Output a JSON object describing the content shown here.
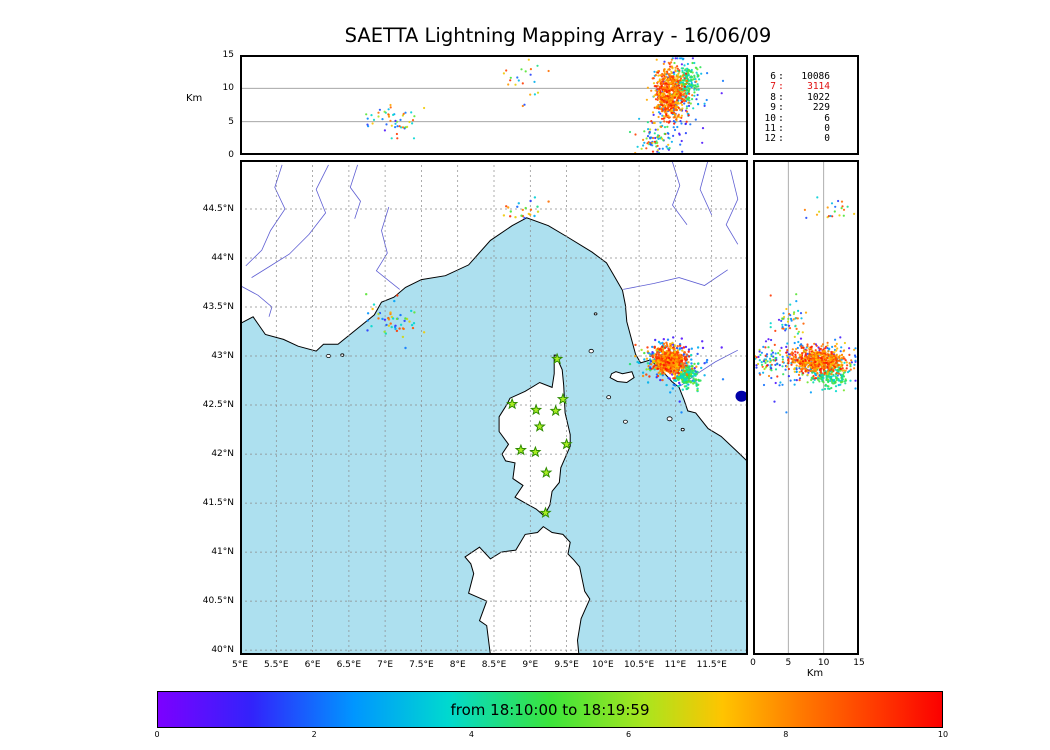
{
  "title": "SAETTA Lightning Mapping Array - 16/06/09",
  "axes": {
    "km_label": "Km",
    "right_km_label": "Km",
    "alt_ticks": [
      {
        "label": "0",
        "v": 0
      },
      {
        "label": "5",
        "v": 5
      },
      {
        "label": "10",
        "v": 10
      },
      {
        "label": "15",
        "v": 15
      }
    ],
    "lat_ticks": [
      {
        "label": "44.5°N",
        "v": 44.5
      },
      {
        "label": "44°N",
        "v": 44
      },
      {
        "label": "43.5°N",
        "v": 43.5
      },
      {
        "label": "43°N",
        "v": 43
      },
      {
        "label": "42.5°N",
        "v": 42.5
      },
      {
        "label": "42°N",
        "v": 42
      },
      {
        "label": "41.5°N",
        "v": 41.5
      },
      {
        "label": "41°N",
        "v": 41
      },
      {
        "label": "40.5°N",
        "v": 40.5
      },
      {
        "label": "40°N",
        "v": 40
      }
    ],
    "lon_ticks": [
      {
        "label": "5°E",
        "v": 5
      },
      {
        "label": "5.5°E",
        "v": 5.5
      },
      {
        "label": "6°E",
        "v": 6
      },
      {
        "label": "6.5°E",
        "v": 6.5
      },
      {
        "label": "7°E",
        "v": 7
      },
      {
        "label": "7.5°E",
        "v": 7.5
      },
      {
        "label": "8°E",
        "v": 8
      },
      {
        "label": "8.5°E",
        "v": 8.5
      },
      {
        "label": "9°E",
        "v": 9
      },
      {
        "label": "9.5°E",
        "v": 9.5
      },
      {
        "label": "10°E",
        "v": 10
      },
      {
        "label": "10.5°E",
        "v": 10.5
      },
      {
        "label": "11°E",
        "v": 11
      },
      {
        "label": "11.5°E",
        "v": 11.5
      }
    ],
    "right_km_ticks": [
      {
        "label": "0",
        "v": 0
      },
      {
        "label": "5",
        "v": 5
      },
      {
        "label": "10",
        "v": 10
      },
      {
        "label": "15",
        "v": 15
      }
    ],
    "alt_gridlines": [
      5,
      10
    ]
  },
  "stats_panel": {
    "highlight_color": "#e01010",
    "rows": [
      {
        "station": "6",
        "count": "10086",
        "highlight": false
      },
      {
        "station": "7",
        "count": "3114",
        "highlight": true
      },
      {
        "station": "8",
        "count": "1022",
        "highlight": false
      },
      {
        "station": "9",
        "count": "229",
        "highlight": false
      },
      {
        "station": "10",
        "count": "6",
        "highlight": false
      },
      {
        "station": "11",
        "count": "0",
        "highlight": false
      },
      {
        "station": "12",
        "count": "0",
        "highlight": false
      }
    ]
  },
  "colorbar": {
    "label": "from 18:10:00 to 18:19:59",
    "ticks": [
      {
        "label": "0",
        "v": 0
      },
      {
        "label": "2",
        "v": 2
      },
      {
        "label": "4",
        "v": 4
      },
      {
        "label": "6",
        "v": 6
      },
      {
        "label": "8",
        "v": 8
      },
      {
        "label": "10",
        "v": 10
      }
    ],
    "stops": [
      [
        0,
        "#7c00ff"
      ],
      [
        0.12,
        "#3223fb"
      ],
      [
        0.25,
        "#0096ff"
      ],
      [
        0.37,
        "#00d9cf"
      ],
      [
        0.5,
        "#3be43b"
      ],
      [
        0.62,
        "#a9e51e"
      ],
      [
        0.72,
        "#ffc400"
      ],
      [
        0.82,
        "#ff7a00"
      ],
      [
        0.92,
        "#ff3700"
      ],
      [
        1,
        "#fb0000"
      ]
    ]
  },
  "map": {
    "colors": {
      "sea": "#ade0ef",
      "land": "#ffffff",
      "coast": "#000000",
      "river": "#5f5fd3",
      "grid": "#8a8a8a",
      "station_fill": "#aaee22",
      "station_stroke": "#2e8b00",
      "lake": "#0000a8"
    },
    "bounds": {
      "lon_min": 5.0,
      "lon_max": 12.0,
      "lat_min": 39.95,
      "lat_max": 45.0
    },
    "stations": [
      [
        9.37,
        42.97
      ],
      [
        8.75,
        42.51
      ],
      [
        9.08,
        42.45
      ],
      [
        9.35,
        42.44
      ],
      [
        9.45,
        42.56
      ],
      [
        9.13,
        42.28
      ],
      [
        9.5,
        42.1
      ],
      [
        8.87,
        42.04
      ],
      [
        9.07,
        42.02
      ],
      [
        9.22,
        41.81
      ],
      [
        9.21,
        41.4
      ]
    ],
    "coastlines": {
      "mainland": [
        [
          5.0,
          43.33
        ],
        [
          5.18,
          43.4
        ],
        [
          5.35,
          43.22
        ],
        [
          5.6,
          43.17
        ],
        [
          5.8,
          43.1
        ],
        [
          6.05,
          43.05
        ],
        [
          6.15,
          43.12
        ],
        [
          6.35,
          43.12
        ],
        [
          6.6,
          43.27
        ],
        [
          6.85,
          43.42
        ],
        [
          6.95,
          43.55
        ],
        [
          7.12,
          43.6
        ],
        [
          7.28,
          43.7
        ],
        [
          7.5,
          43.78
        ],
        [
          7.83,
          43.82
        ],
        [
          8.15,
          43.93
        ],
        [
          8.45,
          44.18
        ],
        [
          8.75,
          44.33
        ],
        [
          8.95,
          44.41
        ],
        [
          9.25,
          44.33
        ],
        [
          9.5,
          44.22
        ],
        [
          9.85,
          44.06
        ],
        [
          10.05,
          43.95
        ],
        [
          10.13,
          43.85
        ],
        [
          10.27,
          43.67
        ],
        [
          10.31,
          43.52
        ],
        [
          10.33,
          43.35
        ],
        [
          10.45,
          43.02
        ],
        [
          10.52,
          42.93
        ],
        [
          10.65,
          42.96
        ],
        [
          10.78,
          42.88
        ],
        [
          10.95,
          42.74
        ],
        [
          11.05,
          42.68
        ],
        [
          11.12,
          42.55
        ],
        [
          11.17,
          42.44
        ],
        [
          11.28,
          42.42
        ],
        [
          11.45,
          42.26
        ],
        [
          11.63,
          42.18
        ],
        [
          11.83,
          42.04
        ],
        [
          12.0,
          41.92
        ],
        [
          12.0,
          45.0
        ],
        [
          5.0,
          45.0
        ]
      ],
      "corsica": [
        [
          9.35,
          43.01
        ],
        [
          9.44,
          42.86
        ],
        [
          9.46,
          42.7
        ],
        [
          9.48,
          42.42
        ],
        [
          9.55,
          42.2
        ],
        [
          9.55,
          42.08
        ],
        [
          9.42,
          41.86
        ],
        [
          9.4,
          41.71
        ],
        [
          9.3,
          41.62
        ],
        [
          9.27,
          41.48
        ],
        [
          9.19,
          41.37
        ],
        [
          9.08,
          41.44
        ],
        [
          8.93,
          41.5
        ],
        [
          8.79,
          41.56
        ],
        [
          8.9,
          41.68
        ],
        [
          8.76,
          41.75
        ],
        [
          8.79,
          41.91
        ],
        [
          8.66,
          41.93
        ],
        [
          8.61,
          42.0
        ],
        [
          8.7,
          42.1
        ],
        [
          8.57,
          42.23
        ],
        [
          8.57,
          42.38
        ],
        [
          8.68,
          42.51
        ],
        [
          8.72,
          42.57
        ],
        [
          8.93,
          42.64
        ],
        [
          9.13,
          42.73
        ],
        [
          9.3,
          42.68
        ],
        [
          9.33,
          42.82
        ],
        [
          9.33,
          43.01
        ]
      ],
      "sardinia": [
        [
          8.45,
          39.95
        ],
        [
          8.4,
          40.25
        ],
        [
          8.3,
          40.3
        ],
        [
          8.4,
          40.5
        ],
        [
          8.15,
          40.58
        ],
        [
          8.22,
          40.78
        ],
        [
          8.18,
          40.88
        ],
        [
          8.1,
          40.95
        ],
        [
          8.3,
          41.05
        ],
        [
          8.45,
          40.93
        ],
        [
          8.6,
          41.0
        ],
        [
          8.8,
          41.02
        ],
        [
          8.93,
          41.18
        ],
        [
          9.1,
          41.2
        ],
        [
          9.18,
          41.26
        ],
        [
          9.3,
          41.2
        ],
        [
          9.45,
          41.18
        ],
        [
          9.55,
          41.1
        ],
        [
          9.52,
          40.98
        ],
        [
          9.6,
          40.92
        ],
        [
          9.68,
          40.85
        ],
        [
          9.75,
          40.6
        ],
        [
          9.82,
          40.52
        ],
        [
          9.7,
          40.32
        ],
        [
          9.65,
          40.1
        ],
        [
          9.67,
          39.95
        ]
      ],
      "elba": [
        [
          10.1,
          42.78
        ],
        [
          10.2,
          42.74
        ],
        [
          10.33,
          42.73
        ],
        [
          10.43,
          42.78
        ],
        [
          10.4,
          42.84
        ],
        [
          10.27,
          42.82
        ],
        [
          10.18,
          42.84
        ],
        [
          10.12,
          42.82
        ]
      ]
    },
    "islands": [
      {
        "lon": 9.84,
        "lat": 43.05,
        "r": 2.2
      },
      {
        "lon": 10.08,
        "lat": 42.58,
        "r": 2.0
      },
      {
        "lon": 10.31,
        "lat": 42.33,
        "r": 2.0
      },
      {
        "lon": 10.92,
        "lat": 42.36,
        "r": 2.5
      },
      {
        "lon": 11.1,
        "lat": 42.25,
        "r": 1.6
      },
      {
        "lon": 6.22,
        "lat": 43.0,
        "r": 2.0
      },
      {
        "lon": 6.41,
        "lat": 43.01,
        "r": 1.6
      },
      {
        "lon": 9.9,
        "lat": 43.43,
        "r": 1.4
      }
    ],
    "lake": {
      "lon": 11.91,
      "lat": 42.59,
      "rx": 6,
      "ry": 5.5
    },
    "rivers": [
      [
        [
          5.58,
          44.95
        ],
        [
          5.48,
          44.72
        ],
        [
          5.62,
          44.5
        ],
        [
          5.42,
          44.28
        ],
        [
          5.3,
          44.08
        ],
        [
          5.08,
          43.92
        ]
      ],
      [
        [
          6.22,
          44.95
        ],
        [
          6.05,
          44.7
        ],
        [
          6.18,
          44.46
        ],
        [
          5.95,
          44.24
        ],
        [
          5.68,
          44.04
        ],
        [
          5.42,
          43.92
        ],
        [
          5.16,
          43.8
        ]
      ],
      [
        [
          6.62,
          44.95
        ],
        [
          6.52,
          44.72
        ],
        [
          6.66,
          44.58
        ],
        [
          6.58,
          44.4
        ]
      ],
      [
        [
          7.05,
          44.52
        ],
        [
          6.95,
          44.28
        ],
        [
          7.03,
          44.05
        ],
        [
          6.88,
          43.87
        ],
        [
          7.2,
          43.68
        ]
      ],
      [
        [
          5.0,
          43.72
        ],
        [
          5.25,
          43.62
        ],
        [
          5.44,
          43.5
        ],
        [
          5.4,
          43.4
        ]
      ],
      [
        [
          10.95,
          45.0
        ],
        [
          11.06,
          44.74
        ],
        [
          10.96,
          44.54
        ],
        [
          11.16,
          44.34
        ]
      ],
      [
        [
          11.45,
          45.0
        ],
        [
          11.34,
          44.7
        ],
        [
          11.5,
          44.44
        ]
      ],
      [
        [
          11.76,
          44.9
        ],
        [
          11.86,
          44.6
        ],
        [
          11.7,
          44.34
        ],
        [
          11.86,
          44.14
        ]
      ],
      [
        [
          11.72,
          43.88
        ],
        [
          11.4,
          43.72
        ],
        [
          11.05,
          43.8
        ],
        [
          10.7,
          43.74
        ],
        [
          10.28,
          43.68
        ]
      ],
      [
        [
          11.86,
          43.06
        ],
        [
          11.55,
          42.94
        ],
        [
          11.3,
          42.82
        ],
        [
          11.08,
          42.7
        ]
      ]
    ]
  },
  "chart_data": {
    "type": "scatter",
    "title": "SAETTA Lightning Mapping Array - 16/06/09",
    "colorbar": {
      "label": "from 18:10:00 to 18:19:59",
      "range": [
        0,
        10
      ],
      "ticks": [
        0,
        2,
        4,
        6,
        8,
        10
      ]
    },
    "panels": [
      {
        "name": "altitude-vs-longitude",
        "x": "longitude_deg_E",
        "y": "altitude_km",
        "xlim": [
          5,
          12
        ],
        "ylim": [
          0,
          15
        ],
        "ylabel": "Km",
        "grid_y": [
          5,
          10
        ]
      },
      {
        "name": "map-longitude-latitude",
        "x": "longitude_deg_E",
        "y": "latitude_deg_N",
        "xlim": [
          5,
          12
        ],
        "ylim": [
          39.95,
          45.0
        ],
        "grid_step": 0.5
      },
      {
        "name": "altitude-vs-latitude",
        "x": "altitude_km",
        "y": "latitude_deg_N",
        "xlim": [
          0,
          15
        ],
        "ylim": [
          39.95,
          45.0
        ],
        "xlabel": "Km",
        "grid_x": [
          5,
          10
        ]
      }
    ],
    "station_source_counts": [
      [
        "6",
        10086
      ],
      [
        "7",
        3114
      ],
      [
        "8",
        1022
      ],
      [
        "9",
        229
      ],
      [
        "10",
        6
      ],
      [
        "11",
        0
      ],
      [
        "12",
        0
      ]
    ],
    "highlighted_station": "7",
    "clusters": [
      {
        "name": "storm-early",
        "n": 140,
        "lon_mean": 11.02,
        "lon_sd": 0.2,
        "lat_mean": 42.92,
        "lat_sd": 0.13,
        "alt_mean": 8.0,
        "alt_sd": 3.8,
        "alt_min": 0.5,
        "alt_max": 14.5,
        "t_min": 0.04,
        "t_max": 0.32
      },
      {
        "name": "storm-low-level",
        "n": 70,
        "lon_mean": 10.72,
        "lon_sd": 0.12,
        "lat_mean": 42.97,
        "lat_sd": 0.08,
        "alt_mean": 2.5,
        "alt_sd": 1.4,
        "alt_min": 0.3,
        "alt_max": 5.5,
        "t_min": 0.1,
        "t_max": 0.95
      },
      {
        "name": "west-sparse",
        "n": 50,
        "lon_mean": 7.15,
        "lon_sd": 0.22,
        "lat_mean": 43.35,
        "lat_sd": 0.1,
        "alt_mean": 5.0,
        "alt_sd": 1.3,
        "alt_min": 2.5,
        "alt_max": 7.5,
        "t_min": 0.05,
        "t_max": 0.95
      },
      {
        "name": "liguria-sparse",
        "n": 22,
        "lon_mean": 8.95,
        "lon_sd": 0.14,
        "lat_mean": 44.48,
        "lat_sd": 0.06,
        "alt_mean": 11.0,
        "alt_sd": 1.8,
        "alt_min": 7.0,
        "alt_max": 14.3,
        "t_min": 0.05,
        "t_max": 0.95
      },
      {
        "name": "storm-mid-time",
        "n": 170,
        "lon_mean": 11.16,
        "lon_sd": 0.08,
        "lat_mean": 42.8,
        "lat_sd": 0.06,
        "alt_mean": 10.8,
        "alt_sd": 1.4,
        "alt_min": 7.0,
        "alt_max": 13.8,
        "t_min": 0.34,
        "t_max": 0.56
      },
      {
        "name": "storm-core-late",
        "n": 620,
        "lon_mean": 10.92,
        "lon_sd": 0.1,
        "lat_mean": 42.95,
        "lat_sd": 0.06,
        "alt_mean": 9.2,
        "alt_sd": 1.9,
        "alt_min": 3.5,
        "alt_max": 14.3,
        "t_min": 0.7,
        "t_max": 0.98
      }
    ]
  }
}
